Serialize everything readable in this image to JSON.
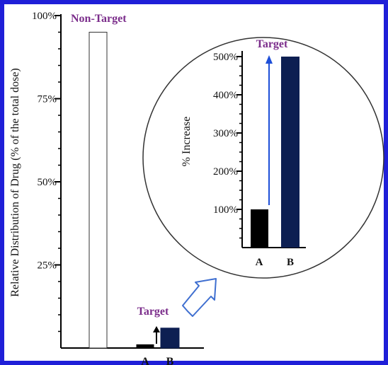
{
  "colors": {
    "frame": "#1f1fd8",
    "axis": "#000000",
    "target_text": "#7b2d8b",
    "bar_a": "#000000",
    "bar_b": "#0d1f52",
    "arrow_blue": "#1e4fd8",
    "zoom_arrow": "#3f6fd0"
  },
  "chart_data": [
    {
      "type": "bar",
      "ylabel": "Relative Distribution of Drug (% of the total dose)",
      "ylim": [
        0,
        100
      ],
      "yticks": [
        "100%",
        "75%",
        "50%",
        "25%"
      ],
      "ytick_values": [
        100,
        75,
        50,
        25
      ],
      "categories": [
        "Non-Target",
        "A",
        "B"
      ],
      "values": [
        95,
        1,
        6
      ],
      "bar_labels": [
        "Non-Target",
        "",
        ""
      ],
      "tick_labels": [
        "",
        "A",
        "B"
      ],
      "annotation": "Target",
      "grid": false
    },
    {
      "type": "bar",
      "ylabel": "% Increase",
      "ylim": [
        0,
        500
      ],
      "yticks": [
        "100%",
        "200%",
        "300%",
        "400%",
        "500%"
      ],
      "ytick_values": [
        100,
        200,
        300,
        400,
        500
      ],
      "categories": [
        "A",
        "B"
      ],
      "values": [
        100,
        500
      ],
      "annotation": "Target",
      "grid": false
    }
  ]
}
